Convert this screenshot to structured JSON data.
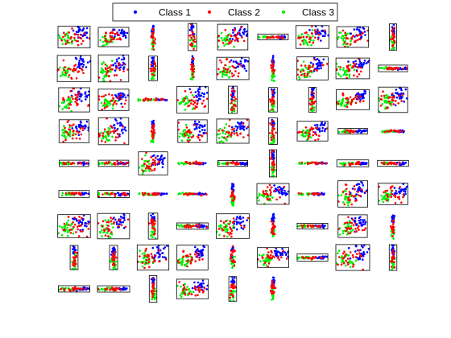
{
  "colors": {
    "background": "#ffffff",
    "axes_box": "#000000",
    "class_1": "#0000ff",
    "class_2": "#ff0000",
    "class_3": "#00ee00"
  },
  "legend": {
    "placement": "top-center",
    "entries": [
      "Class 1",
      "Class 2",
      "Class 3"
    ]
  },
  "chart_data": {
    "type": "scatter",
    "layout": "grid of scatter subplots (9 rows x 9 columns, some cells empty)",
    "series": [
      {
        "name": "Class 1"
      },
      {
        "name": "Class 2"
      },
      {
        "name": "Class 3"
      }
    ],
    "grid": false,
    "axes_visible": "box only, no ticks or labels",
    "legend_placement": "top-center",
    "grid_rows": [
      [
        "b",
        "b",
        "v",
        "v",
        "b",
        "h",
        "b",
        "b",
        "v"
      ],
      [
        "b",
        "b",
        "v",
        "v",
        "b",
        "v",
        "b",
        "b",
        "h"
      ],
      [
        "b",
        "b",
        "h",
        "b",
        "v",
        "v",
        "v",
        "b",
        "b"
      ],
      [
        "b",
        "b",
        "v",
        "b",
        "b",
        "v",
        "b",
        "h",
        "h"
      ],
      [
        "h",
        "h",
        "b",
        "h",
        "h",
        "v",
        "h",
        "h",
        "h"
      ],
      [
        "h",
        "h",
        "h",
        "h",
        "v",
        "b",
        "h",
        "b",
        "b"
      ],
      [
        "b",
        "b",
        "v",
        "h",
        "b",
        "v",
        "h",
        "b",
        "v"
      ],
      [
        "v",
        "v",
        "b",
        "b",
        "v",
        "b",
        "h",
        "b",
        "v"
      ],
      [
        "h",
        "h",
        "v",
        "b",
        "v",
        "v",
        "",
        "",
        ""
      ]
    ]
  }
}
